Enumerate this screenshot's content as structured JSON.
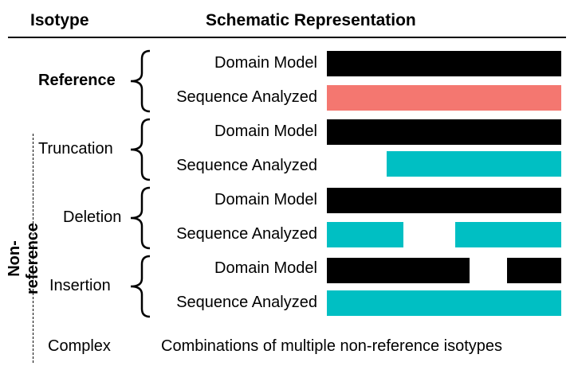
{
  "header": {
    "isotype": "Isotype",
    "schematic": "Schematic Representation"
  },
  "side_label": "Non-reference",
  "row_labels": {
    "domain_model": "Domain Model",
    "sequence_analyzed": "Sequence Analyzed"
  },
  "groups": [
    {
      "label": "Reference",
      "bold": true
    },
    {
      "label": "Truncation",
      "bold": false
    },
    {
      "label": "Deletion",
      "bold": false
    },
    {
      "label": "Insertion",
      "bold": false
    }
  ],
  "complex": {
    "label": "Complex",
    "description": "Combinations of multiple non-reference isotypes"
  },
  "colors": {
    "domain": "#000000",
    "reference_sequence": "#f47770",
    "nonreference_sequence": "#00bfc3"
  }
}
